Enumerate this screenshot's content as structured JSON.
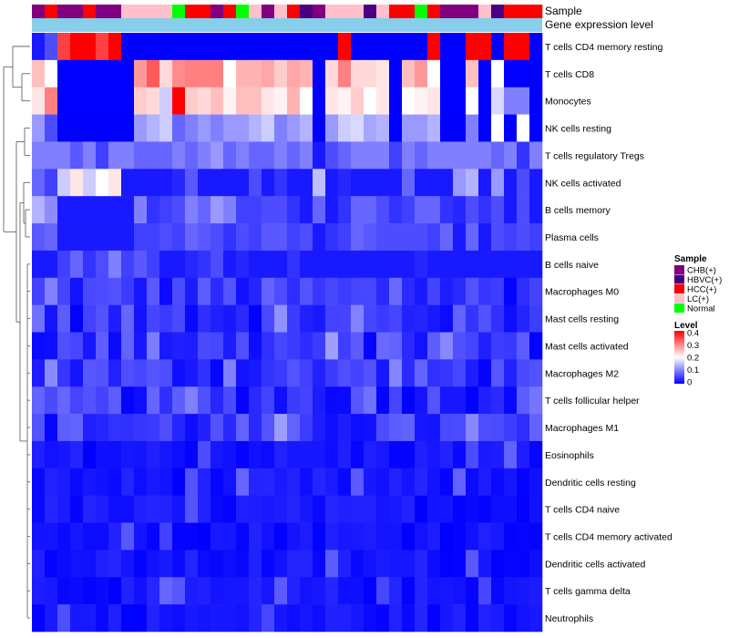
{
  "chart_data": {
    "type": "heatmap",
    "title": "",
    "annotation_tracks": [
      "Sample",
      "Gene expression level"
    ],
    "expression_track_color": "#87ceeb",
    "legend_sample": {
      "title": "Sample",
      "entries": [
        {
          "label": "CHB(+)",
          "color": "#800080"
        },
        {
          "label": "HBVC(+)",
          "color": "#4b0082"
        },
        {
          "label": "HCC(+)",
          "color": "#ff0000"
        },
        {
          "label": "LC(+)",
          "color": "#ffc0cb"
        },
        {
          "label": "Normal",
          "color": "#00ff00"
        }
      ]
    },
    "legend_level": {
      "title": "Level",
      "ticks": [
        "0.4",
        "0.3",
        "0.2",
        "0.1",
        "0"
      ],
      "tick_values": [
        0.4,
        0.3,
        0.2,
        0.1,
        0
      ],
      "colors": [
        "#0000ff",
        "#ffffff",
        "#ff0000"
      ]
    },
    "value_range": [
      0,
      0.4
    ],
    "columns": 40,
    "sample_colors": [
      "#800080",
      "#ff0000",
      "#800080",
      "#800080",
      "#ff0000",
      "#800080",
      "#800080",
      "#ffc0cb",
      "#ffc0cb",
      "#ffc0cb",
      "#ffc0cb",
      "#00ff00",
      "#ff0000",
      "#ff0000",
      "#800080",
      "#ff0000",
      "#00ff00",
      "#ffc0cb",
      "#800080",
      "#ffc0cb",
      "#ff0000",
      "#4b0082",
      "#800080",
      "#ffc0cb",
      "#ffc0cb",
      "#ffc0cb",
      "#4b0082",
      "#ffc0cb",
      "#ff0000",
      "#ff0000",
      "#00ff00",
      "#ff0000",
      "#800080",
      "#800080",
      "#800080",
      "#ffc0cb",
      "#4b0082",
      "#ff0000",
      "#ff0000",
      "#ff0000"
    ],
    "rows": [
      "T cells CD4 memory resting",
      "T cells CD8",
      "Monocytes",
      "NK cells resting",
      "T cells regulatory  Tregs",
      "NK cells activated",
      "B cells memory",
      "Plasma cells",
      "B cells naive",
      "Macrophages M0",
      "Mast cells resting",
      "Mast cells activated",
      "Macrophages M2",
      "T cells follicular helper",
      "Macrophages M1",
      "Eosinophils",
      "Dendritic cells resting",
      "T cells CD4 naive",
      "T cells CD4 memory activated",
      "Dendritic cells activated",
      "T cells gamma delta",
      "Neutrophils"
    ],
    "matrix": [
      [
        0.02,
        0.06,
        0.35,
        0.4,
        0.4,
        0.35,
        0.4,
        0,
        0,
        0,
        0,
        0,
        0,
        0,
        0,
        0,
        0,
        0,
        0,
        0,
        0,
        0,
        0,
        0,
        0.4,
        0,
        0,
        0,
        0,
        0,
        0,
        0.4,
        0,
        0,
        0.4,
        0.4,
        0,
        0.4,
        0.4,
        0
      ],
      [
        0.25,
        0.2,
        0,
        0,
        0,
        0,
        0,
        0,
        0.28,
        0.33,
        0.23,
        0.29,
        0.3,
        0.3,
        0.3,
        0.2,
        0.26,
        0.26,
        0.27,
        0.24,
        0.27,
        0.26,
        0,
        0.23,
        0.3,
        0.23,
        0.23,
        0.22,
        0,
        0.25,
        0.28,
        0.2,
        0,
        0,
        0.25,
        0,
        0.2,
        0,
        0,
        0
      ],
      [
        0.22,
        0.3,
        0,
        0,
        0,
        0,
        0,
        0,
        0.24,
        0.23,
        0.16,
        0.4,
        0.24,
        0.23,
        0.25,
        0.21,
        0.25,
        0.25,
        0.22,
        0.21,
        0.26,
        0.2,
        0,
        0.22,
        0.21,
        0.24,
        0.2,
        0.22,
        0,
        0.2,
        0.21,
        0.22,
        0,
        0,
        0.2,
        0,
        0.17,
        0.1,
        0.1,
        0
      ],
      [
        0.12,
        0.06,
        0,
        0,
        0,
        0,
        0,
        0,
        0.12,
        0.14,
        0.16,
        0.08,
        0.1,
        0.12,
        0.1,
        0.12,
        0.12,
        0.14,
        0.16,
        0.1,
        0.12,
        0.14,
        0,
        0.12,
        0.16,
        0.17,
        0.13,
        0.14,
        0,
        0.12,
        0.12,
        0.14,
        0,
        0,
        0.1,
        0,
        0.2,
        0,
        0.2,
        0
      ],
      [
        0.1,
        0.1,
        0.1,
        0.07,
        0.1,
        0.05,
        0.1,
        0.1,
        0.08,
        0.08,
        0.08,
        0.1,
        0.08,
        0.1,
        0.12,
        0.08,
        0.1,
        0.08,
        0.08,
        0.1,
        0.08,
        0.1,
        0.02,
        0.06,
        0.08,
        0.1,
        0.1,
        0.1,
        0.05,
        0.1,
        0.08,
        0.1,
        0.1,
        0.1,
        0.1,
        0.1,
        0.08,
        0.1,
        0.04,
        0.1
      ],
      [
        0.08,
        0.05,
        0.16,
        0.22,
        0.16,
        0.2,
        0.22,
        0.02,
        0.02,
        0.02,
        0.02,
        0.03,
        0.07,
        0.02,
        0.02,
        0.02,
        0.02,
        0.06,
        0.02,
        0.04,
        0.02,
        0.02,
        0.15,
        0.02,
        0.03,
        0.02,
        0.02,
        0.02,
        0.02,
        0.08,
        0.02,
        0.02,
        0.02,
        0.12,
        0.14,
        0.02,
        0.12,
        0.02,
        0.06,
        0.02
      ],
      [
        0.14,
        0.11,
        0.02,
        0.02,
        0.02,
        0.02,
        0.02,
        0.02,
        0.1,
        0.04,
        0.05,
        0.06,
        0.1,
        0.08,
        0.12,
        0.1,
        0.05,
        0.05,
        0.06,
        0.06,
        0.04,
        0.02,
        0.08,
        0.02,
        0.04,
        0.08,
        0.08,
        0.06,
        0.04,
        0.05,
        0.08,
        0.08,
        0.04,
        0.03,
        0.06,
        0.04,
        0.06,
        0.02,
        0.06,
        0.02
      ],
      [
        0.07,
        0.08,
        0.02,
        0.02,
        0.02,
        0.02,
        0.02,
        0.02,
        0.05,
        0.05,
        0.06,
        0.05,
        0.08,
        0.07,
        0.06,
        0.04,
        0.06,
        0.05,
        0.07,
        0.07,
        0.05,
        0.06,
        0.02,
        0.04,
        0.05,
        0.08,
        0.07,
        0.06,
        0.06,
        0.06,
        0.06,
        0.05,
        0.08,
        0.02,
        0.08,
        0.02,
        0.06,
        0.05,
        0.06,
        0.05
      ],
      [
        0.02,
        0.02,
        0.05,
        0.08,
        0.04,
        0.06,
        0.1,
        0.05,
        0.07,
        0.05,
        0.02,
        0.02,
        0.03,
        0.04,
        0.06,
        0.02,
        0.03,
        0.02,
        0.02,
        0.02,
        0.04,
        0.02,
        0.02,
        0.02,
        0.02,
        0.02,
        0.02,
        0.02,
        0.02,
        0.02,
        0.03,
        0.02,
        0.02,
        0.02,
        0.02,
        0.02,
        0.02,
        0.02,
        0.02,
        0.02
      ]
    ],
    "_matrix_note": "rows beyond index 8 use low generated values"
  }
}
